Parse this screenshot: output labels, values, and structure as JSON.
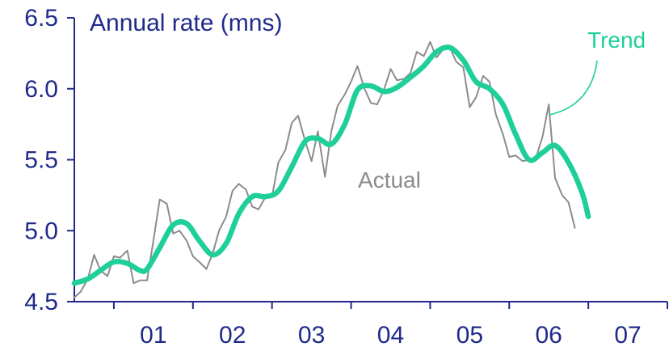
{
  "chart_data": {
    "type": "line",
    "title": "Annual rate (mns)",
    "xlabel": "",
    "ylabel": "",
    "x_ticks": [
      "01",
      "02",
      "03",
      "04",
      "05",
      "06",
      "07"
    ],
    "ylim": [
      4.5,
      6.5
    ],
    "y_ticks": [
      "4.5",
      "5.0",
      "5.5",
      "6.0",
      "6.5"
    ],
    "x_range": [
      2000.5,
      2008.0
    ],
    "grid": false,
    "annotations": [
      {
        "text": "Trend",
        "series": "Trend"
      },
      {
        "text": "Actual",
        "series": "Actual"
      }
    ],
    "series": [
      {
        "name": "Actual",
        "color": "#8c8c8c",
        "points": [
          [
            2000.5,
            4.53
          ],
          [
            2000.58,
            4.57
          ],
          [
            2000.67,
            4.66
          ],
          [
            2000.75,
            4.83
          ],
          [
            2000.83,
            4.72
          ],
          [
            2000.92,
            4.68
          ],
          [
            2001.0,
            4.82
          ],
          [
            2001.08,
            4.81
          ],
          [
            2001.17,
            4.86
          ],
          [
            2001.25,
            4.63
          ],
          [
            2001.33,
            4.65
          ],
          [
            2001.42,
            4.65
          ],
          [
            2001.5,
            4.93
          ],
          [
            2001.58,
            5.22
          ],
          [
            2001.67,
            5.19
          ],
          [
            2001.75,
            4.98
          ],
          [
            2001.83,
            5.0
          ],
          [
            2001.92,
            4.93
          ],
          [
            2002.0,
            4.82
          ],
          [
            2002.08,
            4.78
          ],
          [
            2002.17,
            4.73
          ],
          [
            2002.25,
            4.84
          ],
          [
            2002.33,
            5.0
          ],
          [
            2002.42,
            5.1
          ],
          [
            2002.5,
            5.28
          ],
          [
            2002.58,
            5.33
          ],
          [
            2002.67,
            5.29
          ],
          [
            2002.75,
            5.17
          ],
          [
            2002.83,
            5.15
          ],
          [
            2002.92,
            5.24
          ],
          [
            2003.0,
            5.24
          ],
          [
            2003.08,
            5.48
          ],
          [
            2003.17,
            5.57
          ],
          [
            2003.25,
            5.76
          ],
          [
            2003.33,
            5.81
          ],
          [
            2003.42,
            5.63
          ],
          [
            2003.5,
            5.49
          ],
          [
            2003.58,
            5.7
          ],
          [
            2003.67,
            5.38
          ],
          [
            2003.75,
            5.7
          ],
          [
            2003.83,
            5.88
          ],
          [
            2003.92,
            5.96
          ],
          [
            2004.0,
            6.05
          ],
          [
            2004.08,
            6.16
          ],
          [
            2004.17,
            6.0
          ],
          [
            2004.25,
            5.9
          ],
          [
            2004.33,
            5.89
          ],
          [
            2004.42,
            6.0
          ],
          [
            2004.5,
            6.14
          ],
          [
            2004.58,
            6.06
          ],
          [
            2004.67,
            6.07
          ],
          [
            2004.75,
            6.11
          ],
          [
            2004.83,
            6.26
          ],
          [
            2004.92,
            6.23
          ],
          [
            2005.0,
            6.33
          ],
          [
            2005.08,
            6.22
          ],
          [
            2005.17,
            6.28
          ],
          [
            2005.25,
            6.29
          ],
          [
            2005.33,
            6.19
          ],
          [
            2005.42,
            6.15
          ],
          [
            2005.5,
            5.87
          ],
          [
            2005.58,
            5.94
          ],
          [
            2005.67,
            6.09
          ],
          [
            2005.75,
            6.05
          ],
          [
            2005.83,
            5.82
          ],
          [
            2005.92,
            5.68
          ],
          [
            2006.0,
            5.52
          ],
          [
            2006.08,
            5.53
          ],
          [
            2006.17,
            5.49
          ],
          [
            2006.25,
            5.5
          ],
          [
            2006.33,
            5.5
          ],
          [
            2006.42,
            5.66
          ],
          [
            2006.5,
            5.89
          ],
          [
            2006.58,
            5.37
          ],
          [
            2006.67,
            5.25
          ],
          [
            2006.75,
            5.2
          ],
          [
            2006.83,
            5.02
          ]
        ]
      },
      {
        "name": "Trend",
        "color": "#1fcf9a",
        "points": [
          [
            2000.5,
            4.63
          ],
          [
            2000.67,
            4.66
          ],
          [
            2000.83,
            4.72
          ],
          [
            2001.0,
            4.78
          ],
          [
            2001.17,
            4.77
          ],
          [
            2001.33,
            4.72
          ],
          [
            2001.42,
            4.73
          ],
          [
            2001.58,
            4.88
          ],
          [
            2001.75,
            5.04
          ],
          [
            2001.92,
            5.05
          ],
          [
            2002.08,
            4.93
          ],
          [
            2002.25,
            4.83
          ],
          [
            2002.42,
            4.91
          ],
          [
            2002.58,
            5.12
          ],
          [
            2002.75,
            5.24
          ],
          [
            2002.92,
            5.24
          ],
          [
            2003.08,
            5.28
          ],
          [
            2003.25,
            5.45
          ],
          [
            2003.42,
            5.63
          ],
          [
            2003.58,
            5.65
          ],
          [
            2003.75,
            5.61
          ],
          [
            2003.92,
            5.75
          ],
          [
            2004.08,
            5.99
          ],
          [
            2004.25,
            6.02
          ],
          [
            2004.42,
            5.98
          ],
          [
            2004.58,
            6.01
          ],
          [
            2004.75,
            6.08
          ],
          [
            2004.92,
            6.16
          ],
          [
            2005.08,
            6.26
          ],
          [
            2005.25,
            6.29
          ],
          [
            2005.42,
            6.2
          ],
          [
            2005.58,
            6.05
          ],
          [
            2005.75,
            6.0
          ],
          [
            2005.92,
            5.89
          ],
          [
            2006.08,
            5.68
          ],
          [
            2006.25,
            5.5
          ],
          [
            2006.42,
            5.55
          ],
          [
            2006.58,
            5.6
          ],
          [
            2006.75,
            5.48
          ],
          [
            2006.92,
            5.27
          ],
          [
            2007.0,
            5.1
          ]
        ]
      }
    ]
  }
}
